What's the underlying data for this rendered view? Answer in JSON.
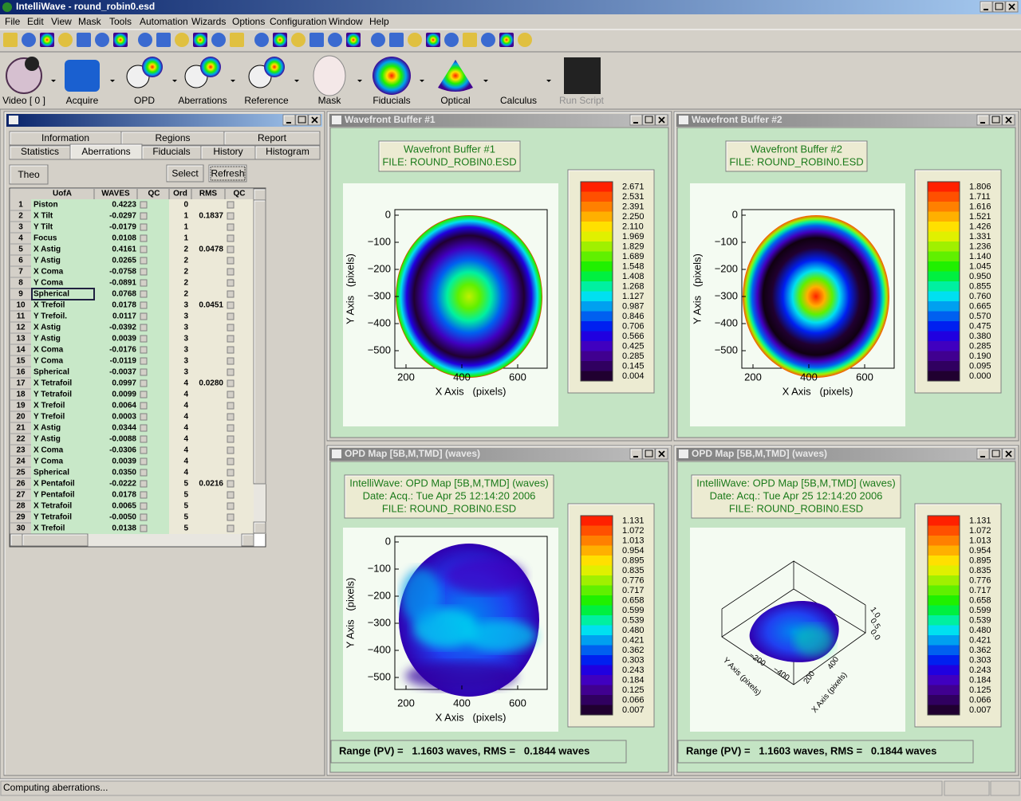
{
  "title_bar": "IntelliWave - round_robin0.esd",
  "menu": [
    "File",
    "Edit",
    "View",
    "Mask",
    "Tools",
    "Automation",
    "Wizards",
    "Options",
    "Configuration",
    "Window",
    "Help"
  ],
  "toolbar": [
    "Video [ 0 ]",
    "Acquire",
    "OPD",
    "Aberrations",
    "Reference",
    "Mask",
    "Fiducials",
    "Optical",
    "Calculus",
    "Run Script"
  ],
  "aberrations_window": {
    "tabs_top": [
      "Information",
      "Regions",
      "Report"
    ],
    "tabs_bottom": [
      "Statistics",
      "Aberrations",
      "Fiducials",
      "History",
      "Histogram"
    ],
    "buttons": [
      "Theo",
      "Select",
      "Refresh"
    ],
    "columns": [
      "UofA",
      "WAVES",
      "QC",
      "Ord",
      "RMS",
      "QC"
    ],
    "rows": [
      {
        "n": 1,
        "term": "Piston",
        "waves": "0.4223",
        "ord": "0"
      },
      {
        "n": 2,
        "term": "X Tilt",
        "waves": "-0.0297",
        "ord": "1",
        "rms": "0.1837"
      },
      {
        "n": 3,
        "term": "Y Tilt",
        "waves": "-0.0179",
        "ord": "1"
      },
      {
        "n": 4,
        "term": "Focus",
        "waves": "0.0108",
        "ord": "1"
      },
      {
        "n": 5,
        "term": "X Astig",
        "waves": "0.4161",
        "ord": "2",
        "rms": "0.0478"
      },
      {
        "n": 6,
        "term": "Y Astig",
        "waves": "0.0265",
        "ord": "2"
      },
      {
        "n": 7,
        "term": "X Coma",
        "waves": "-0.0758",
        "ord": "2"
      },
      {
        "n": 8,
        "term": "Y Coma",
        "waves": "-0.0891",
        "ord": "2"
      },
      {
        "n": 9,
        "term": "Spherical",
        "waves": "0.0768",
        "ord": "2"
      },
      {
        "n": 10,
        "term": "X Trefoil",
        "waves": "0.0178",
        "ord": "3",
        "rms": "0.0451"
      },
      {
        "n": 11,
        "term": "Y Trefoil.",
        "waves": "0.0117",
        "ord": "3"
      },
      {
        "n": 12,
        "term": "X Astig",
        "waves": "-0.0392",
        "ord": "3"
      },
      {
        "n": 13,
        "term": "Y Astig",
        "waves": "0.0039",
        "ord": "3"
      },
      {
        "n": 14,
        "term": "X Coma",
        "waves": "-0.0176",
        "ord": "3"
      },
      {
        "n": 15,
        "term": "Y Coma",
        "waves": "-0.0119",
        "ord": "3"
      },
      {
        "n": 16,
        "term": "Spherical",
        "waves": "-0.0037",
        "ord": "3"
      },
      {
        "n": 17,
        "term": "X Tetrafoil",
        "waves": "0.0997",
        "ord": "4",
        "rms": "0.0280"
      },
      {
        "n": 18,
        "term": "Y Tetrafoil",
        "waves": "0.0099",
        "ord": "4"
      },
      {
        "n": 19,
        "term": "X Trefoil",
        "waves": "0.0064",
        "ord": "4"
      },
      {
        "n": 20,
        "term": "Y Trefoil",
        "waves": "0.0003",
        "ord": "4"
      },
      {
        "n": 21,
        "term": "X Astig",
        "waves": "0.0344",
        "ord": "4"
      },
      {
        "n": 22,
        "term": "Y Astig",
        "waves": "-0.0088",
        "ord": "4"
      },
      {
        "n": 23,
        "term": "X Coma",
        "waves": "-0.0306",
        "ord": "4"
      },
      {
        "n": 24,
        "term": "Y Coma",
        "waves": "0.0039",
        "ord": "4"
      },
      {
        "n": 25,
        "term": "Spherical",
        "waves": "0.0350",
        "ord": "4"
      },
      {
        "n": 26,
        "term": "X Pentafoil",
        "waves": "-0.0222",
        "ord": "5",
        "rms": "0.0216"
      },
      {
        "n": 27,
        "term": "Y Pentafoil",
        "waves": "0.0178",
        "ord": "5"
      },
      {
        "n": 28,
        "term": "X Tetrafoil",
        "waves": "0.0065",
        "ord": "5"
      },
      {
        "n": 29,
        "term": "Y Tetrafoil",
        "waves": "-0.0050",
        "ord": "5"
      },
      {
        "n": 30,
        "term": "X Trefoil",
        "waves": "0.0138",
        "ord": "5"
      }
    ]
  },
  "windows": [
    {
      "title": "Wavefront Buffer #1",
      "caption": [
        "Wavefront Buffer #1",
        "FILE: ROUND_ROBIN0.ESD"
      ],
      "colorbar": [
        "2.671",
        "2.531",
        "2.391",
        "2.250",
        "2.110",
        "1.969",
        "1.829",
        "1.689",
        "1.548",
        "1.408",
        "1.268",
        "1.127",
        "0.987",
        "0.846",
        "0.706",
        "0.566",
        "0.425",
        "0.285",
        "0.145",
        "0.004"
      ],
      "y_ticks": [
        "0",
        "−100",
        "−200",
        "−300",
        "−400",
        "−500"
      ],
      "x_ticks": [
        "200",
        "400",
        "600"
      ],
      "y_label": "Y Axis   (pixels)",
      "x_label": "X Axis   (pixels)"
    },
    {
      "title": "Wavefront Buffer #2",
      "caption": [
        "Wavefront Buffer #2",
        "FILE: ROUND_ROBIN0.ESD"
      ],
      "colorbar": [
        "1.806",
        "1.711",
        "1.616",
        "1.521",
        "1.426",
        "1.331",
        "1.236",
        "1.140",
        "1.045",
        "0.950",
        "0.855",
        "0.760",
        "0.665",
        "0.570",
        "0.475",
        "0.380",
        "0.285",
        "0.190",
        "0.095",
        "0.000"
      ],
      "y_ticks": [
        "0",
        "−100",
        "−200",
        "−300",
        "−400",
        "−500"
      ],
      "x_ticks": [
        "200",
        "400",
        "600"
      ],
      "y_label": "Y Axis   (pixels)",
      "x_label": "X Axis   (pixels)"
    },
    {
      "title": "OPD Map [5B,M,TMD]  (waves)",
      "caption": [
        "IntelliWave: OPD Map [5B,M,TMD]  (waves)",
        "Date: Acq.: Tue Apr 25 12:14:20 2006",
        "FILE: ROUND_ROBIN0.ESD"
      ],
      "colorbar": [
        "1.131",
        "1.072",
        "1.013",
        "0.954",
        "0.895",
        "0.835",
        "0.776",
        "0.717",
        "0.658",
        "0.599",
        "0.539",
        "0.480",
        "0.421",
        "0.362",
        "0.303",
        "0.243",
        "0.184",
        "0.125",
        "0.066",
        "0.007"
      ],
      "y_ticks": [
        "0",
        "−100",
        "−200",
        "−300",
        "−400",
        "−500"
      ],
      "x_ticks": [
        "200",
        "400",
        "600"
      ],
      "y_label": "Y Axis   (pixels)",
      "x_label": "X Axis   (pixels)",
      "footer": "Range (PV) =   1.1603 waves, RMS =   0.1844 waves"
    },
    {
      "title": "OPD Map [5B,M,TMD]  (waves)",
      "caption": [
        "IntelliWave: OPD Map [5B,M,TMD]  (waves)",
        "Date: Acq.: Tue Apr 25 12:14:20 2006",
        "FILE: ROUND_ROBIN0.ESD"
      ],
      "colorbar": [
        "1.131",
        "1.072",
        "1.013",
        "0.954",
        "0.895",
        "0.835",
        "0.776",
        "0.717",
        "0.658",
        "0.599",
        "0.539",
        "0.480",
        "0.421",
        "0.362",
        "0.303",
        "0.243",
        "0.184",
        "0.125",
        "0.066",
        "0.007"
      ],
      "axes3d": {
        "x_label": "X Axis (pixels)",
        "y_label": "Y Axis (pixels)",
        "x_ticks": [
          "200",
          "400"
        ],
        "y_ticks": [
          "−200",
          "−400"
        ],
        "z_ticks": [
          "0.0",
          "0.5",
          "1.0"
        ]
      },
      "footer": "Range (PV) =   1.1603 waves, RMS =   0.1844 waves"
    }
  ],
  "status": "Computing aberrations..."
}
